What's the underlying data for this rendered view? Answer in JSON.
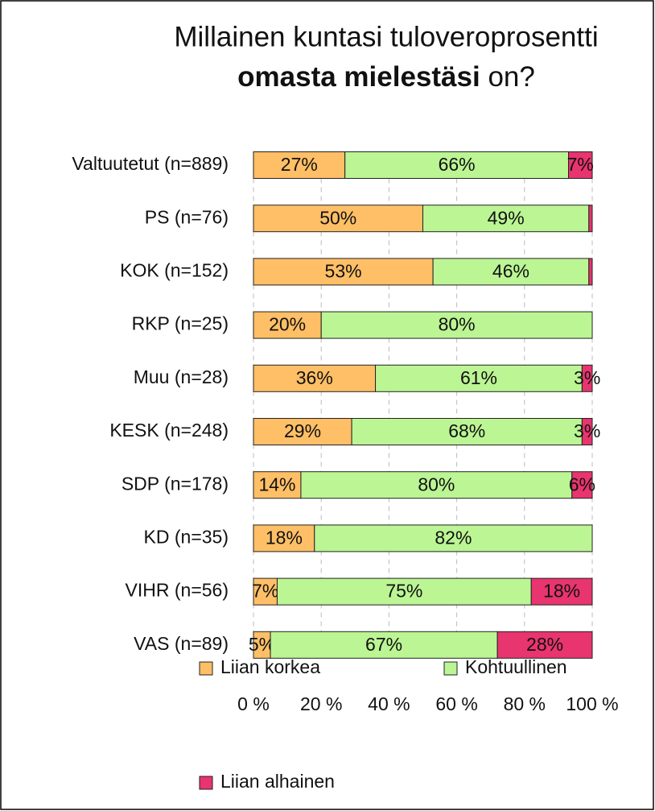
{
  "chart_data": {
    "type": "stacked_bar_horizontal",
    "title": [
      "Millainen kuntasi tuloveroprosentti",
      "omasta mielestäsi",
      "on?"
    ],
    "categories": [
      "Valtuutetut (n=889)",
      "PS (n=76)",
      "KOK (n=152)",
      "RKP (n=25)",
      "Muu (n=28)",
      "KESK (n=248)",
      "SDP (n=178)",
      "KD (n=35)",
      "VIHR (n=56)",
      "VAS (n=89)"
    ],
    "series": [
      {
        "name": "Liian korkea",
        "color": "#ffbf66",
        "values": [
          27,
          50,
          53,
          20,
          36,
          29,
          14,
          18,
          7,
          5
        ],
        "value_labels": [
          "27%",
          "50%",
          "53%",
          "20%",
          "36%",
          "29%",
          "14%",
          "18%",
          "7%",
          "5%"
        ]
      },
      {
        "name": "Kohtuullinen",
        "color": "#bbf594",
        "values": [
          66,
          49,
          46,
          80,
          61,
          68,
          80,
          82,
          75,
          67
        ],
        "value_labels": [
          "66%",
          "49%",
          "46%",
          "80%",
          "61%",
          "68%",
          "80%",
          "82%",
          "75%",
          "67%"
        ]
      },
      {
        "name": "Liian alhainen",
        "color": "#e8346f",
        "values": [
          7,
          1,
          1,
          0,
          3,
          3,
          6,
          0,
          18,
          28
        ],
        "value_labels": [
          "7%",
          null,
          null,
          null,
          "3%",
          "3%",
          "6%",
          null,
          "18%",
          "28%"
        ]
      }
    ],
    "xlim": [
      0,
      100
    ],
    "xticks": [
      {
        "value": 0,
        "label": "0 %"
      },
      {
        "value": 20,
        "label": "20 %"
      },
      {
        "value": 40,
        "label": "40 %"
      },
      {
        "value": 60,
        "label": "60 %"
      },
      {
        "value": 80,
        "label": "80 %"
      },
      {
        "value": 100,
        "label": "100 %"
      }
    ],
    "grid": true
  }
}
